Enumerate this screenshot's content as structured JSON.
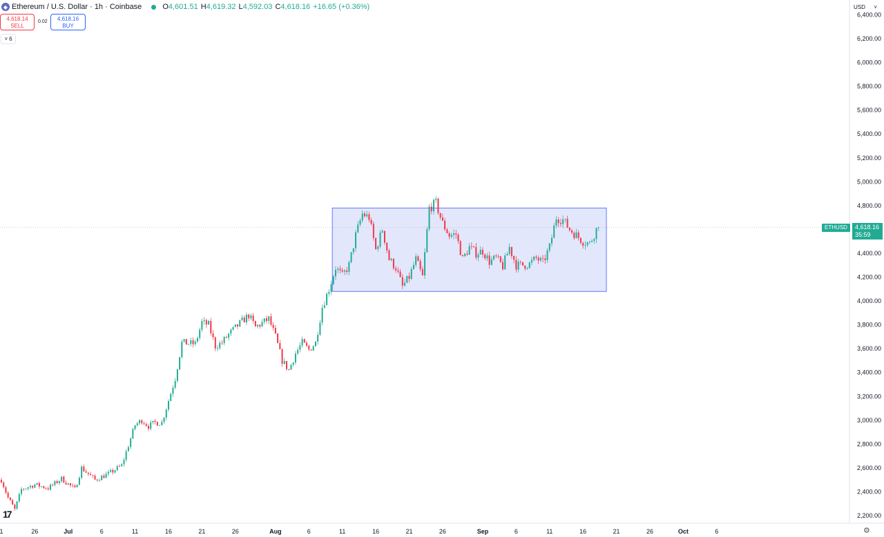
{
  "header": {
    "symbol_title": "Ethereum / U.S. Dollar · 1h · Coinbase",
    "open_key": "O",
    "open": "4,601.51",
    "high_key": "H",
    "high": "4,619.32",
    "low_key": "L",
    "low": "4,592.03",
    "close_key": "C",
    "close": "4,618.16",
    "change": "+16.65 (+0.36%)"
  },
  "trade": {
    "sell_price": "4,618.14",
    "sell_label": "SELL",
    "spread": "0.02",
    "buy_price": "4,618.16",
    "buy_label": "BUY"
  },
  "indicators_toggle": "6",
  "currency": "USD",
  "last_price": {
    "symbol": "ETHUSD",
    "price": "4,618.16",
    "countdown": "35:59"
  },
  "colors": {
    "up": "#22ab94",
    "down": "#f23645",
    "box_fill": "#dde3fb",
    "box_stroke": "#3d5afe"
  },
  "icons": [
    "ethereum-icon",
    "live-dot-icon",
    "chevron-down-icon",
    "gear-icon",
    "tradingview-logo-icon"
  ],
  "chart_data": {
    "type": "candlestick",
    "title": "Ethereum / U.S. Dollar · 1h · Coinbase",
    "ylim": [
      2150,
      6350
    ],
    "y_ticks": [
      2200,
      2400,
      2600,
      2800,
      3000,
      3200,
      3400,
      3600,
      3800,
      4000,
      4200,
      4400,
      4600,
      4800,
      5000,
      5200,
      5400,
      5600,
      5800,
      6000,
      6200,
      6400
    ],
    "y_tick_labels": [
      "2,200.00",
      "2,400.00",
      "2,600.00",
      "2,800.00",
      "3,000.00",
      "3,200.00",
      "3,400.00",
      "3,600.00",
      "3,800.00",
      "4,000.00",
      "4,200.00",
      "4,400.00",
      "4,600.00",
      "4,800.00",
      "5,000.00",
      "5,200.00",
      "5,400.00",
      "5,600.00",
      "5,800.00",
      "6,000.00",
      "6,200.00",
      "6,400.00"
    ],
    "x_tick_labels": [
      "1",
      "26",
      "Jul",
      "6",
      "11",
      "16",
      "21",
      "26",
      "Aug",
      "6",
      "11",
      "16",
      "21",
      "26",
      "Sep",
      "6",
      "11",
      "16",
      "21",
      "26",
      "Oct",
      "6"
    ],
    "x_tick_days": [
      0,
      5,
      10,
      15,
      20,
      25,
      30,
      35,
      41,
      46,
      51,
      56,
      61,
      66,
      72,
      77,
      82,
      87,
      92,
      97,
      102,
      107
    ],
    "price_path": [
      [
        0,
        2500
      ],
      [
        1,
        2350
      ],
      [
        2,
        2250
      ],
      [
        3,
        2420
      ],
      [
        5,
        2460
      ],
      [
        7,
        2430
      ],
      [
        9,
        2510
      ],
      [
        11,
        2420
      ],
      [
        12,
        2600
      ],
      [
        14,
        2500
      ],
      [
        16,
        2550
      ],
      [
        18,
        2620
      ],
      [
        20,
        2960
      ],
      [
        21,
        3000
      ],
      [
        22,
        2950
      ],
      [
        23,
        2980
      ],
      [
        24,
        2980
      ],
      [
        26,
        3350
      ],
      [
        27,
        3650
      ],
      [
        29,
        3640
      ],
      [
        30,
        3820
      ],
      [
        31,
        3800
      ],
      [
        32,
        3620
      ],
      [
        33,
        3650
      ],
      [
        34,
        3720
      ],
      [
        36,
        3830
      ],
      [
        37,
        3880
      ],
      [
        38,
        3780
      ],
      [
        40,
        3850
      ],
      [
        41,
        3700
      ],
      [
        42,
        3500
      ],
      [
        43,
        3420
      ],
      [
        44,
        3560
      ],
      [
        45,
        3650
      ],
      [
        46,
        3590
      ],
      [
        47,
        3650
      ],
      [
        48,
        3950
      ],
      [
        49,
        4100
      ],
      [
        50,
        4280
      ],
      [
        51,
        4210
      ],
      [
        52,
        4300
      ],
      [
        53,
        4550
      ],
      [
        54,
        4730
      ],
      [
        55,
        4700
      ],
      [
        56,
        4430
      ],
      [
        57,
        4600
      ],
      [
        58,
        4350
      ],
      [
        59,
        4280
      ],
      [
        60,
        4120
      ],
      [
        61,
        4200
      ],
      [
        62,
        4350
      ],
      [
        63,
        4200
      ],
      [
        64,
        4780
      ],
      [
        65,
        4820
      ],
      [
        66,
        4650
      ],
      [
        67,
        4550
      ],
      [
        68,
        4560
      ],
      [
        69,
        4350
      ],
      [
        70,
        4450
      ],
      [
        71,
        4400
      ],
      [
        72,
        4420
      ],
      [
        73,
        4330
      ],
      [
        74,
        4360
      ],
      [
        75,
        4290
      ],
      [
        76,
        4450
      ],
      [
        77,
        4300
      ],
      [
        78,
        4300
      ],
      [
        79,
        4310
      ],
      [
        80,
        4360
      ],
      [
        81,
        4320
      ],
      [
        82,
        4450
      ],
      [
        83,
        4700
      ],
      [
        84,
        4680
      ],
      [
        85,
        4600
      ],
      [
        86,
        4550
      ],
      [
        87,
        4500
      ],
      [
        88,
        4480
      ],
      [
        89,
        4600
      ],
      [
        89.6,
        4618.16
      ]
    ],
    "range_box": {
      "x_start_day": 49.5,
      "x_end_day": 90.5,
      "y_top": 4780,
      "y_bottom": 4080
    },
    "last_price": 4618.16
  }
}
